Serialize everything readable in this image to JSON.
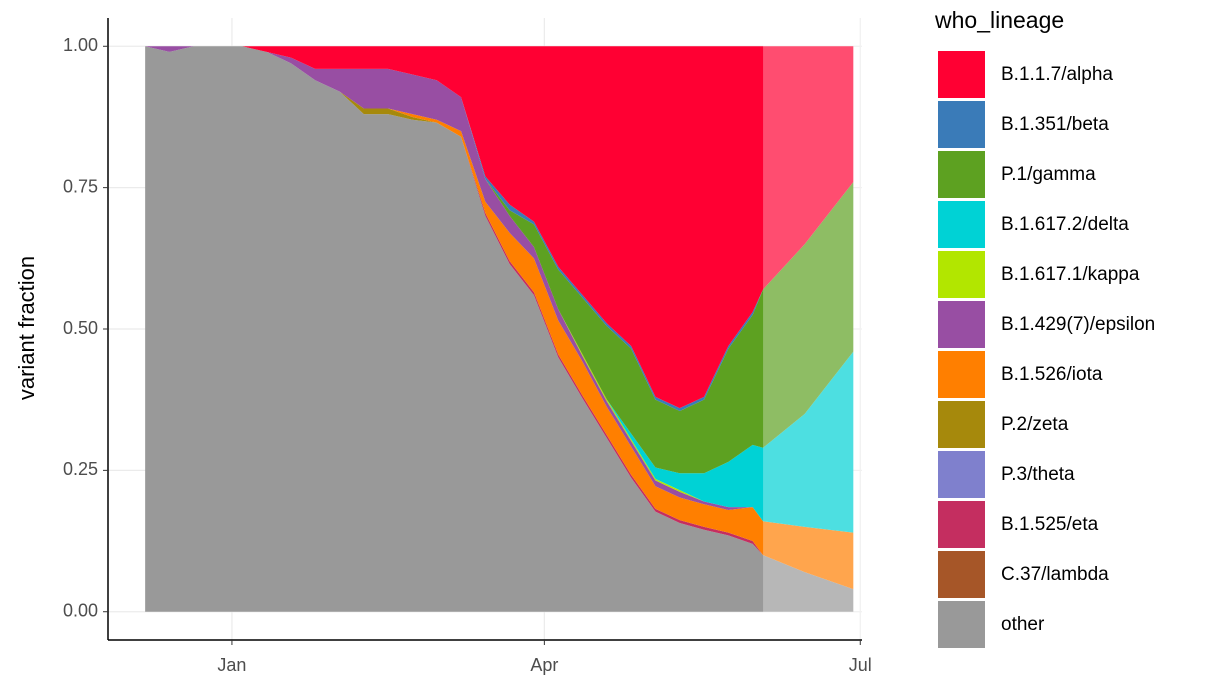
{
  "chart_data": {
    "type": "stacked_area",
    "y_label": "variant fraction",
    "legend_title": "who_lineage",
    "legend": "right",
    "grid": true,
    "forecast_start": 153,
    "x": [
      -25,
      -18,
      -11,
      -4,
      3,
      10,
      17,
      24,
      31,
      38,
      45,
      52,
      59,
      66,
      73,
      80,
      87,
      94,
      101,
      108,
      115,
      122,
      129,
      136,
      143,
      150,
      153,
      165,
      179
    ],
    "xlim": [
      -35.7,
      181.5
    ],
    "xticks": [
      {
        "value": 0,
        "label": "Jan"
      },
      {
        "value": 90,
        "label": "Apr"
      },
      {
        "value": 181,
        "label": "Jul"
      }
    ],
    "ylim": [
      -0.05,
      1.05
    ],
    "yticks": [
      {
        "value": 0,
        "label": "0.00"
      },
      {
        "value": 0.25,
        "label": "0.25"
      },
      {
        "value": 0.5,
        "label": "0.50"
      },
      {
        "value": 0.75,
        "label": "0.75"
      },
      {
        "value": 1,
        "label": "1.00"
      }
    ],
    "series": [
      {
        "name": "B.1.1.7/alpha",
        "color": "#ff0033",
        "values": [
          0,
          0,
          0,
          0,
          0,
          0.01,
          0.02,
          0.04,
          0.04,
          0.04,
          0.04,
          0.05,
          0.06,
          0.09,
          0.23,
          0.28,
          0.31,
          0.39,
          0.44,
          0.49,
          0.53,
          0.62,
          0.64,
          0.62,
          0.53,
          0.47,
          0.43,
          0.35,
          0.24
        ]
      },
      {
        "name": "B.1.351/beta",
        "color": "#3a7bb8",
        "values": [
          0,
          0,
          0,
          0,
          0,
          0,
          0,
          0,
          0,
          0,
          0,
          0,
          0,
          0,
          0.005,
          0.01,
          0.005,
          0.005,
          0.005,
          0.005,
          0.005,
          0.005,
          0.005,
          0.005,
          0.005,
          0.005,
          0,
          0,
          0
        ]
      },
      {
        "name": "P.1/gamma",
        "color": "#5da121",
        "values": [
          0,
          0,
          0,
          0,
          0,
          0,
          0,
          0,
          0,
          0,
          0,
          0,
          0,
          0,
          0,
          0.01,
          0.04,
          0.07,
          0.1,
          0.13,
          0.15,
          0.12,
          0.11,
          0.13,
          0.2,
          0.23,
          0.28,
          0.3,
          0.3
        ]
      },
      {
        "name": "B.1.617.2/delta",
        "color": "#00d2d5",
        "values": [
          0,
          0,
          0,
          0,
          0,
          0,
          0,
          0,
          0,
          0,
          0,
          0,
          0,
          0,
          0,
          0,
          0,
          0,
          0,
          0,
          0.01,
          0.02,
          0.03,
          0.05,
          0.08,
          0.11,
          0.13,
          0.2,
          0.32
        ]
      },
      {
        "name": "B.1.617.1/kappa",
        "color": "#b2e600",
        "values": [
          0,
          0,
          0,
          0,
          0,
          0,
          0,
          0,
          0,
          0,
          0,
          0,
          0,
          0,
          0,
          0,
          0,
          0,
          0.003,
          0.003,
          0.003,
          0.003,
          0.003,
          0,
          0,
          0,
          0,
          0,
          0
        ]
      },
      {
        "name": "B.1.429(7)/epsilon",
        "color": "#984ea3",
        "values": [
          0,
          0.01,
          0,
          0,
          0,
          0,
          0.01,
          0.02,
          0.04,
          0.07,
          0.07,
          0.07,
          0.07,
          0.06,
          0.04,
          0.03,
          0.02,
          0.02,
          0.01,
          0.01,
          0.01,
          0.01,
          0.01,
          0.005,
          0.005,
          0,
          0,
          0,
          0
        ]
      },
      {
        "name": "B.1.526/iota",
        "color": "#ff7f00",
        "values": [
          0,
          0,
          0,
          0,
          0,
          0,
          0,
          0,
          0,
          0,
          0,
          0.005,
          0.005,
          0.01,
          0.02,
          0.05,
          0.06,
          0.06,
          0.06,
          0.05,
          0.05,
          0.04,
          0.04,
          0.04,
          0.04,
          0.06,
          0.06,
          0.08,
          0.1
        ]
      },
      {
        "name": "P.2/zeta",
        "color": "#a6890c",
        "values": [
          0,
          0,
          0,
          0,
          0,
          0,
          0,
          0,
          0,
          0.01,
          0.01,
          0.005,
          0,
          0,
          0,
          0,
          0,
          0,
          0,
          0,
          0,
          0,
          0,
          0,
          0,
          0,
          0,
          0,
          0
        ]
      },
      {
        "name": "P.3/theta",
        "color": "#7f80cd",
        "values": [
          0,
          0,
          0,
          0,
          0,
          0,
          0,
          0,
          0,
          0,
          0,
          0,
          0,
          0,
          0,
          0,
          0,
          0,
          0,
          0,
          0,
          0,
          0,
          0,
          0,
          0,
          0,
          0,
          0
        ]
      },
      {
        "name": "B.1.525/eta",
        "color": "#c42e60",
        "values": [
          0,
          0,
          0,
          0,
          0,
          0,
          0,
          0,
          0,
          0,
          0,
          0,
          0,
          0,
          0.005,
          0.005,
          0.005,
          0.005,
          0.005,
          0.005,
          0.005,
          0.005,
          0.005,
          0.005,
          0.005,
          0.005,
          0,
          0,
          0
        ]
      },
      {
        "name": "C.37/lambda",
        "color": "#a65628",
        "values": [
          0,
          0,
          0,
          0,
          0,
          0,
          0,
          0,
          0,
          0,
          0,
          0,
          0,
          0,
          0,
          0,
          0,
          0,
          0,
          0,
          0,
          0,
          0,
          0,
          0,
          0,
          0,
          0,
          0
        ]
      },
      {
        "name": "other",
        "color": "#999999",
        "values": [
          1,
          0.99,
          1,
          1,
          1,
          0.99,
          0.97,
          0.94,
          0.92,
          0.88,
          0.88,
          0.87,
          0.865,
          0.84,
          0.7,
          0.615,
          0.56,
          0.45,
          0.377,
          0.307,
          0.237,
          0.177,
          0.157,
          0.145,
          0.135,
          0.12,
          0.1,
          0.07,
          0.04
        ]
      }
    ]
  }
}
